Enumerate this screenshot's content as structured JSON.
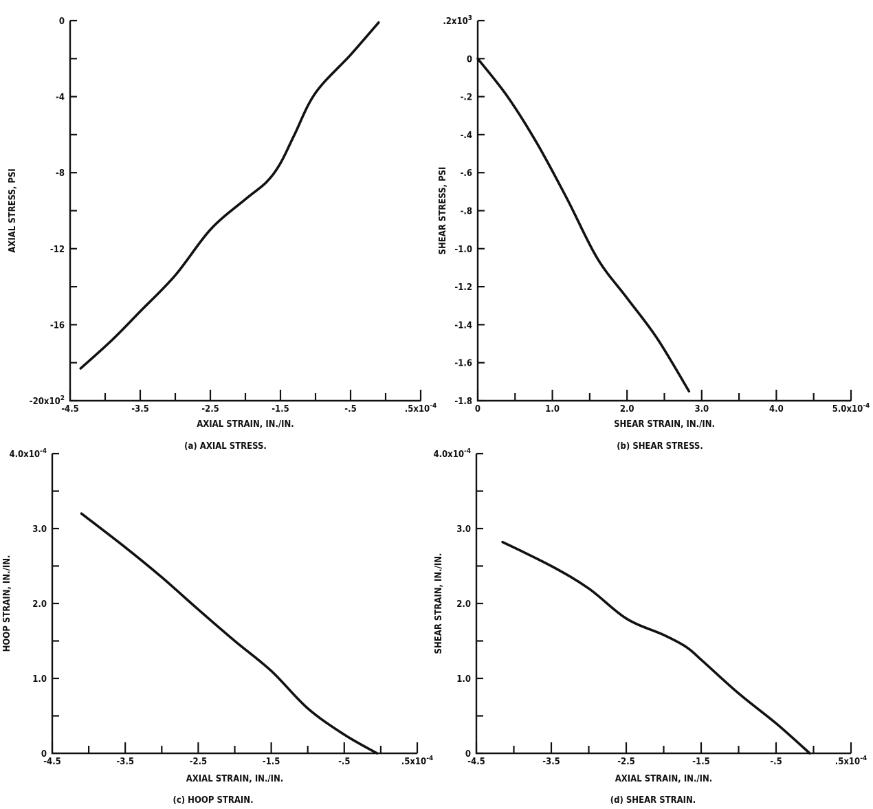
{
  "chart_data": [
    {
      "type": "line",
      "caption": "(a) AXIAL STRESS.",
      "xlabel": "AXIAL STRAIN, IN./IN.",
      "ylabel": "AXIAL STRESS, PSI",
      "x_scale_note": "x10^-4",
      "y_scale_note": "x10^2",
      "xlim": [
        -4.5,
        0.5
      ],
      "ylim": [
        -20,
        0
      ],
      "x_ticks": [
        -4.5,
        -4.0,
        -3.5,
        -3.0,
        -2.5,
        -2.0,
        -1.5,
        -1.0,
        -0.5,
        0.0,
        0.5
      ],
      "x_tick_labels": [
        "-4.5",
        "",
        "-3.5",
        "",
        "-2.5",
        "",
        "-1.5",
        "",
        "-.5",
        "",
        ".5x10^-4"
      ],
      "y_ticks": [
        -20,
        -18,
        -16,
        -14,
        -12,
        -10,
        -8,
        -6,
        -4,
        -2,
        0
      ],
      "y_tick_labels": [
        "-20x10^2",
        "",
        "-16",
        "",
        "-12",
        "",
        "-8",
        "",
        "-4",
        "",
        "0"
      ],
      "series": [
        {
          "x": [
            -4.35,
            -3.9,
            -3.5,
            -3.0,
            -2.5,
            -2.0,
            -1.7,
            -1.5,
            -1.3,
            -1.0,
            -0.5,
            -0.1
          ],
          "y": [
            -18.3,
            -16.8,
            -15.3,
            -13.4,
            -11.0,
            -9.4,
            -8.5,
            -7.5,
            -6.0,
            -3.8,
            -1.8,
            -0.1
          ]
        }
      ]
    },
    {
      "type": "line",
      "caption": "(b) SHEAR STRESS.",
      "xlabel": "SHEAR STRAIN, IN./IN.",
      "ylabel": "SHEAR STRESS, PSI",
      "x_scale_note": "x10^-4",
      "y_scale_note": "x10^3",
      "xlim": [
        0,
        5.0
      ],
      "ylim": [
        -1.8,
        0.2
      ],
      "x_ticks": [
        0,
        0.5,
        1.0,
        1.5,
        2.0,
        2.5,
        3.0,
        3.5,
        4.0,
        4.5,
        5.0
      ],
      "x_tick_labels": [
        "0",
        "",
        "1.0",
        "",
        "2.0",
        "",
        "3.0",
        "",
        "4.0",
        "",
        "5.0x10^-4"
      ],
      "y_ticks": [
        -1.8,
        -1.6,
        -1.4,
        -1.2,
        -1.0,
        -0.8,
        -0.6,
        -0.4,
        -0.2,
        0,
        0.2
      ],
      "y_tick_labels": [
        "-1.8",
        "-1.6",
        "-1.4",
        "-1.2",
        "-1.0",
        "-.8",
        "-.6",
        "-.4",
        "-.2",
        "0",
        ".2x10^3"
      ],
      "series": [
        {
          "x": [
            0.0,
            0.4,
            0.8,
            1.2,
            1.6,
            2.0,
            2.4,
            2.83
          ],
          "y": [
            0.0,
            -0.2,
            -0.45,
            -0.74,
            -1.05,
            -1.26,
            -1.47,
            -1.75
          ]
        }
      ]
    },
    {
      "type": "line",
      "caption": "(c) HOOP STRAIN.",
      "xlabel": "AXIAL STRAIN, IN./IN.",
      "ylabel": "HOOP STRAIN, IN./IN.",
      "x_scale_note": "x10^-4",
      "y_scale_note": "x10^-4",
      "xlim": [
        -4.5,
        0.5
      ],
      "ylim": [
        0,
        4.0
      ],
      "x_ticks": [
        -4.5,
        -4.0,
        -3.5,
        -3.0,
        -2.5,
        -2.0,
        -1.5,
        -1.0,
        -0.5,
        0.0,
        0.5
      ],
      "x_tick_labels": [
        "-4.5",
        "",
        "-3.5",
        "",
        "-2.5",
        "",
        "-1.5",
        "",
        "-.5",
        "",
        ".5x10^-4"
      ],
      "y_ticks": [
        0,
        0.5,
        1.0,
        1.5,
        2.0,
        2.5,
        3.0,
        3.5,
        4.0
      ],
      "y_tick_labels": [
        "0",
        "",
        "1.0",
        "",
        "2.0",
        "",
        "3.0",
        "",
        "4.0x10^-4"
      ],
      "series": [
        {
          "x": [
            -4.1,
            -3.5,
            -3.0,
            -2.5,
            -2.0,
            -1.5,
            -1.0,
            -0.5,
            -0.05
          ],
          "y": [
            3.2,
            2.75,
            2.35,
            1.92,
            1.5,
            1.1,
            0.6,
            0.25,
            0.0
          ]
        }
      ]
    },
    {
      "type": "line",
      "caption": "(d) SHEAR STRAIN.",
      "xlabel": "AXIAL STRAIN, IN./IN.",
      "ylabel": "SHEAR STRAIN, IN./IN.",
      "x_scale_note": "x10^-4",
      "y_scale_note": "x10^-4",
      "xlim": [
        -4.5,
        0.5
      ],
      "ylim": [
        0,
        4.0
      ],
      "x_ticks": [
        -4.5,
        -4.0,
        -3.5,
        -3.0,
        -2.5,
        -2.0,
        -1.5,
        -1.0,
        -0.5,
        0.0,
        0.5
      ],
      "x_tick_labels": [
        "-4.5",
        "",
        "-3.5",
        "",
        "-2.5",
        "",
        "-1.5",
        "",
        "-.5",
        "",
        ".5x10^-4"
      ],
      "y_ticks": [
        0,
        0.5,
        1.0,
        1.5,
        2.0,
        2.5,
        3.0,
        3.5,
        4.0
      ],
      "y_tick_labels": [
        "0",
        "",
        "1.0",
        "",
        "2.0",
        "",
        "3.0",
        "",
        "4.0x10^-4"
      ],
      "series": [
        {
          "x": [
            -4.15,
            -3.5,
            -3.0,
            -2.5,
            -2.0,
            -1.7,
            -1.5,
            -1.0,
            -0.5,
            -0.05
          ],
          "y": [
            2.82,
            2.5,
            2.2,
            1.8,
            1.58,
            1.42,
            1.25,
            0.8,
            0.4,
            0.0
          ]
        }
      ]
    }
  ]
}
